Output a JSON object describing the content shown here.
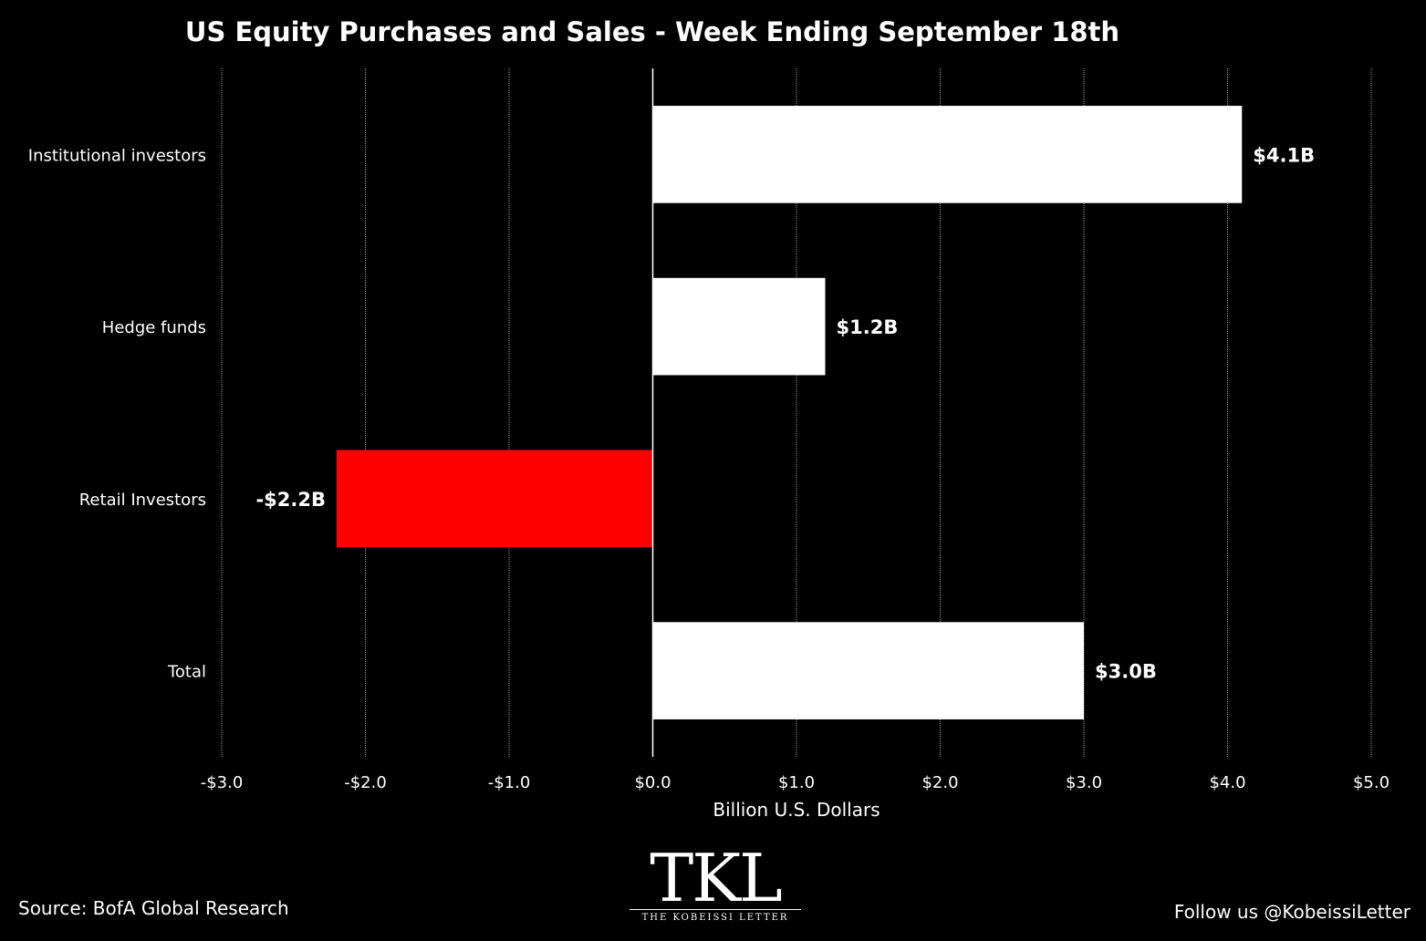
{
  "chart_data": {
    "type": "bar",
    "orientation": "horizontal",
    "title": "US Equity Purchases and Sales - Week Ending September 18th",
    "xlabel": "Billion U.S. Dollars",
    "ylabel": "",
    "xlim": [
      -3.0,
      5.0
    ],
    "x_ticks": [
      -3.0,
      -2.0,
      -1.0,
      0.0,
      1.0,
      2.0,
      3.0,
      4.0,
      5.0
    ],
    "x_tick_labels": [
      "-$3.0",
      "-$2.0",
      "-$1.0",
      "$0.0",
      "$1.0",
      "$2.0",
      "$3.0",
      "$4.0",
      "$5.0"
    ],
    "categories": [
      "Institutional investors",
      "Hedge funds",
      "Retail Investors",
      "Total"
    ],
    "values": [
      4.1,
      1.2,
      -2.2,
      3.0
    ],
    "data_labels": [
      "$4.1B",
      "$1.2B",
      "-$2.2B",
      "$3.0B"
    ],
    "grid": true,
    "legend": "none",
    "colors": {
      "positive": "#ffffff",
      "negative": "#ff0000",
      "background": "#000000",
      "gridline": "#9a9a9a"
    }
  },
  "footer": {
    "source": "Source: BofA Global Research",
    "follow": "Follow us @KobeissiLetter"
  },
  "logo": {
    "mark": "TKL",
    "caption": "THE KOBEISSI LETTER"
  }
}
